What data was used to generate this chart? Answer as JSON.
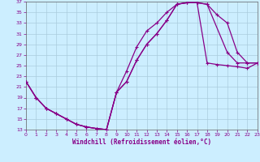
{
  "background_color": "#cceeff",
  "grid_color": "#aaccdd",
  "line_color": "#880088",
  "xlabel": "Windchill (Refroidissement éolien,°C)",
  "xlim": [
    0,
    23
  ],
  "ylim": [
    13,
    37
  ],
  "xticks": [
    0,
    1,
    2,
    3,
    4,
    5,
    6,
    7,
    8,
    9,
    10,
    11,
    12,
    13,
    14,
    15,
    16,
    17,
    18,
    19,
    20,
    21,
    22,
    23
  ],
  "yticks": [
    13,
    15,
    17,
    19,
    21,
    23,
    25,
    27,
    29,
    31,
    33,
    35,
    37
  ],
  "curve1_x": [
    0,
    1,
    2,
    3,
    4,
    5,
    6,
    7,
    8,
    9,
    10,
    11,
    12,
    13,
    14,
    15,
    16,
    17,
    18,
    19,
    20,
    21,
    22,
    23
  ],
  "curve1_y": [
    22,
    19,
    17,
    16,
    15,
    14,
    13.5,
    13.2,
    13,
    20,
    24,
    28.5,
    31.5,
    33,
    35,
    36.5,
    36.8,
    36.8,
    36.5,
    34.5,
    33,
    27.5,
    25.5,
    25.5
  ],
  "curve2_x": [
    0,
    1,
    2,
    3,
    4,
    5,
    6,
    7,
    8,
    9,
    10,
    11,
    12,
    13,
    14,
    15,
    16,
    17,
    18,
    20,
    21,
    22,
    23
  ],
  "curve2_y": [
    22,
    19,
    17,
    16,
    15,
    14,
    13.5,
    13.2,
    13,
    20,
    22,
    26,
    29,
    31,
    33.5,
    36.5,
    36.8,
    36.8,
    36.5,
    27.5,
    25.5,
    25.5,
    25.5
  ],
  "curve3_x": [
    0,
    1,
    2,
    3,
    4,
    5,
    6,
    7,
    8,
    9,
    10,
    11,
    12,
    13,
    14,
    15,
    16,
    17,
    18,
    19,
    20,
    21,
    22,
    23
  ],
  "curve3_y": [
    22,
    19,
    17,
    16,
    15,
    14,
    13.5,
    13.2,
    13,
    20,
    22,
    26,
    29,
    31,
    33.5,
    36.5,
    36.8,
    36.8,
    25.5,
    25.2,
    25.0,
    24.8,
    24.5,
    25.5
  ]
}
